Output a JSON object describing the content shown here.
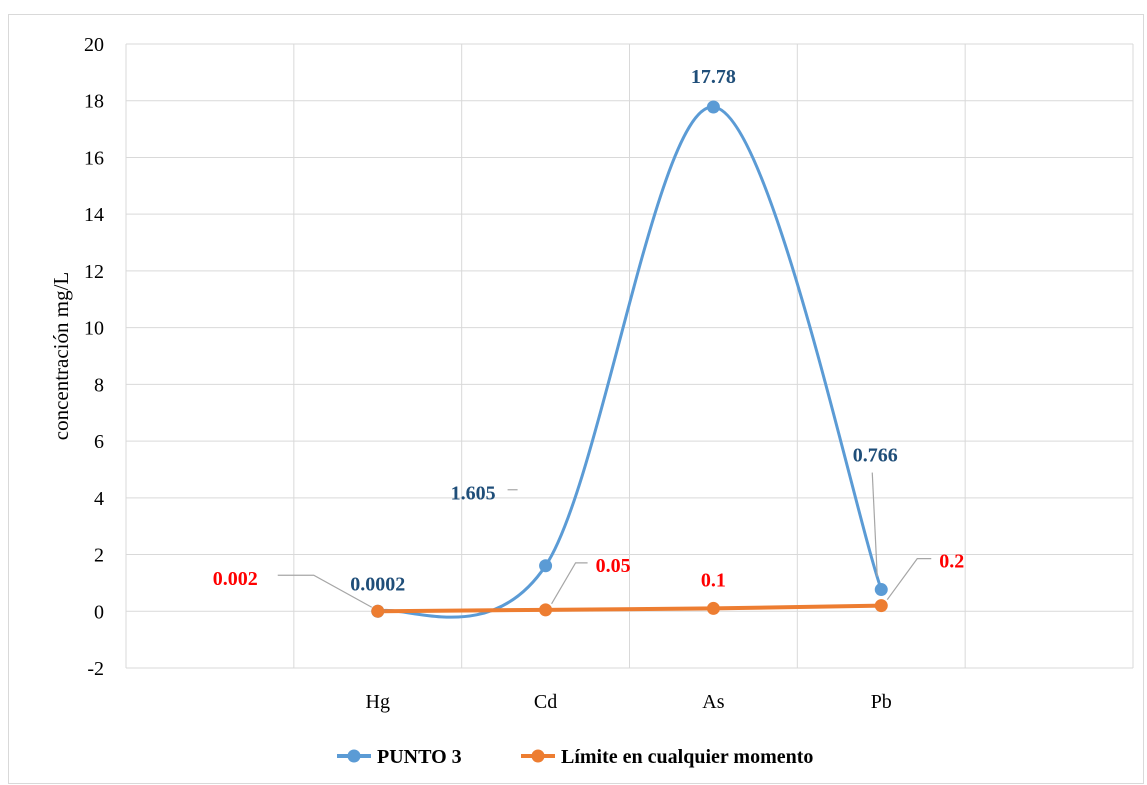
{
  "chart_data": {
    "type": "line",
    "categories": [
      "",
      "Hg",
      "Cd",
      "As",
      "Pb",
      ""
    ],
    "ylabel": "concentración mg/L",
    "xlabel": "",
    "ylim": [
      -2,
      20
    ],
    "yticks": [
      -2,
      0,
      2,
      4,
      6,
      8,
      10,
      12,
      14,
      16,
      18,
      20
    ],
    "grid": true,
    "legend_position": "bottom",
    "series": [
      {
        "name": "PUNTO 3",
        "color": "#5b9bd5",
        "smooth": true,
        "values": [
          null,
          0.0002,
          1.605,
          17.78,
          0.766,
          null
        ],
        "labels": [
          "",
          "0.0002",
          "1.605",
          "17.78",
          "0.766",
          ""
        ],
        "label_color": "#1f4e79"
      },
      {
        "name": "Límite en cualquier momento",
        "color": "#ed7d31",
        "smooth": false,
        "values": [
          null,
          0.002,
          0.05,
          0.1,
          0.2,
          null
        ],
        "labels": [
          "",
          "0.002",
          "0.05",
          "0.1",
          "0.2",
          ""
        ],
        "label_color": "#ff0000"
      }
    ]
  }
}
